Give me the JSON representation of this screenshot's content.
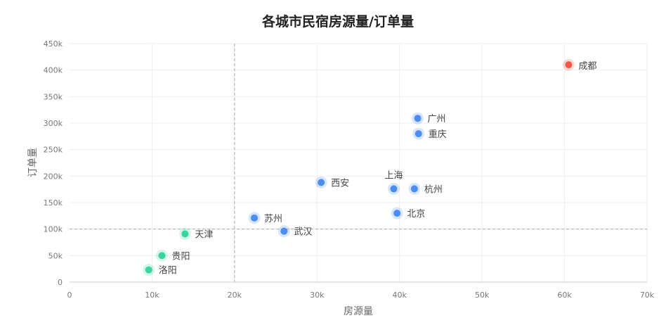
{
  "chart_data": {
    "type": "scatter",
    "title": "各城市民宿房源量/订单量",
    "xlabel": "房源量",
    "ylabel": "订单量",
    "xlim": [
      0,
      70000
    ],
    "ylim": [
      0,
      450000
    ],
    "x_ticks": [
      "0",
      "10k",
      "20k",
      "30k",
      "40k",
      "50k",
      "60k",
      "70k"
    ],
    "y_ticks": [
      "0",
      "50k",
      "100k",
      "150k",
      "200k",
      "250k",
      "300k",
      "350k",
      "400k",
      "450k"
    ],
    "grid": true,
    "reference_lines": {
      "x": 20000,
      "y": 100000
    },
    "colors": {
      "high": "#ee5a47",
      "mid": "#4b8df0",
      "low": "#3bd4a0"
    },
    "points": [
      {
        "name": "成都",
        "x": 60500,
        "y": 410000,
        "group": "high"
      },
      {
        "name": "广州",
        "x": 42200,
        "y": 309000,
        "group": "mid"
      },
      {
        "name": "重庆",
        "x": 42300,
        "y": 280000,
        "group": "mid"
      },
      {
        "name": "上海",
        "x": 39300,
        "y": 176000,
        "group": "mid"
      },
      {
        "name": "杭州",
        "x": 41800,
        "y": 176000,
        "group": "mid"
      },
      {
        "name": "西安",
        "x": 30500,
        "y": 188000,
        "group": "mid"
      },
      {
        "name": "北京",
        "x": 39700,
        "y": 130000,
        "group": "mid"
      },
      {
        "name": "苏州",
        "x": 22400,
        "y": 121000,
        "group": "mid"
      },
      {
        "name": "武汉",
        "x": 26000,
        "y": 96000,
        "group": "mid"
      },
      {
        "name": "天津",
        "x": 14000,
        "y": 91000,
        "group": "low"
      },
      {
        "name": "贵阳",
        "x": 11200,
        "y": 50000,
        "group": "low"
      },
      {
        "name": "洛阳",
        "x": 9600,
        "y": 23000,
        "group": "low"
      }
    ]
  }
}
